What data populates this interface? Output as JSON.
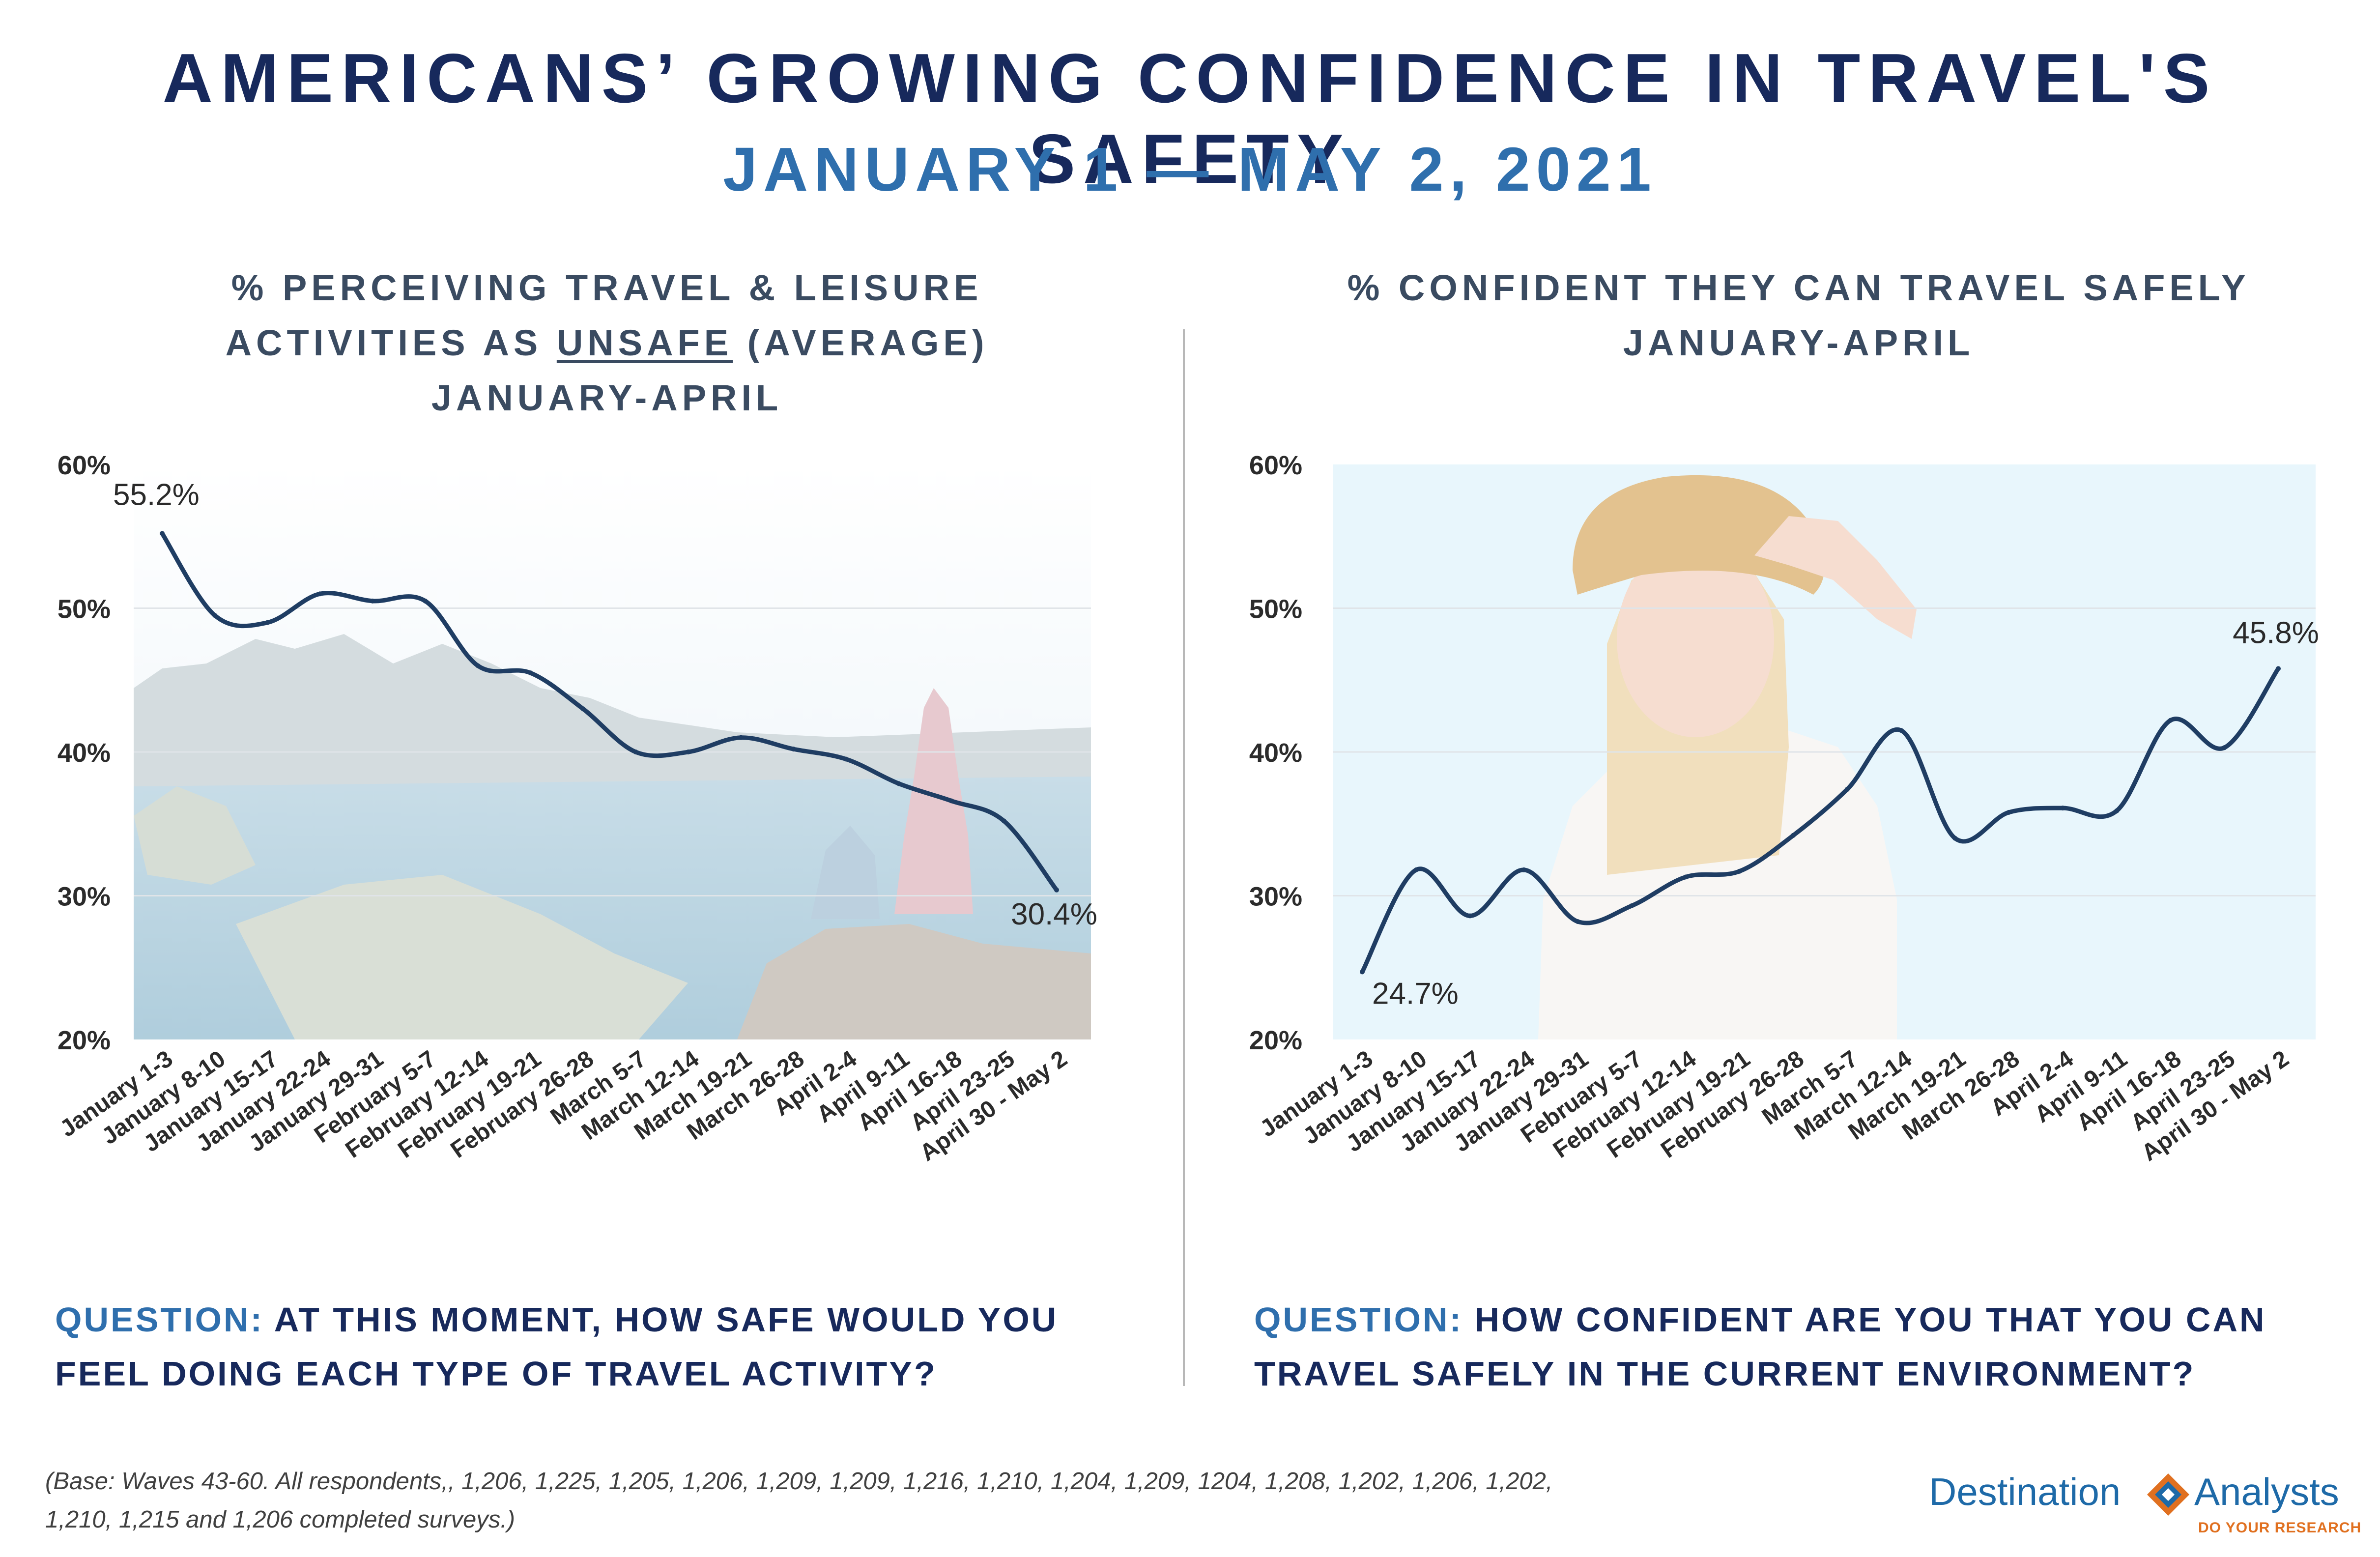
{
  "title": "AMERICANS’ GROWING CONFIDENCE IN TRAVEL'S SAFETY",
  "subtitle": "JANUARY 1 — MAY 2, 2021",
  "left_panel": {
    "title_line1": "% PERCEIVING TRAVEL & LEISURE",
    "title_line2_pre": "ACTIVITIES AS ",
    "title_line2_underlined": "UNSAFE",
    "title_line2_post": " (AVERAGE)",
    "title_line3": "JANUARY-APRIL",
    "question_label": "QUESTION:",
    "question_text": " AT THIS MOMENT, HOW SAFE WOULD YOU FEEL DOING EACH TYPE OF TRAVEL ACTIVITY?"
  },
  "right_panel": {
    "title_line1": "% CONFIDENT THEY CAN TRAVEL SAFELY",
    "title_line2": "JANUARY-APRIL",
    "question_label": "QUESTION:",
    "question_text": " HOW CONFIDENT ARE YOU THAT YOU CAN TRAVEL SAFELY IN THE CURRENT ENVIRONMENT?"
  },
  "footnote_line1": "(Base: Waves 43-60.  All respondents,, 1,206, 1,225, 1,205, 1,206, 1,209, 1,209, 1,216, 1,210, 1,204, 1,209, 1204, 1,208, 1,202, 1,206, 1,202,",
  "footnote_line2": "1,210, 1,215 and 1,206 completed surveys.)",
  "logo": {
    "word1": "Destination",
    "word2": "Analysts",
    "tagline": "DO YOUR RESEARCH"
  },
  "colors": {
    "title": "#17295c",
    "subtitle": "#2f6fad",
    "line": "#1f3d63",
    "grid": "#e0e4e8",
    "logo_blue": "#1e6aa8",
    "logo_orange": "#e07020"
  },
  "chart_data": [
    {
      "type": "line",
      "categories": [
        "January 1-3",
        "January 8-10",
        "January 15-17",
        "January 22-24",
        "January 29-31",
        "February 5-7",
        "February 12-14",
        "February 19-21",
        "February 26-28",
        "March 5-7",
        "March 12-14",
        "March 19-21",
        "March 26-28",
        "April 2-4",
        "April 9-11",
        "April 16-18",
        "April 23-25",
        "April 30 - May 2"
      ],
      "values": [
        55.2,
        49.5,
        49.0,
        51.0,
        50.5,
        50.5,
        46.0,
        45.5,
        43.0,
        40.0,
        40.0,
        41.0,
        40.2,
        39.5,
        37.8,
        36.6,
        35.2,
        30.4
      ],
      "data_labels": [
        {
          "index": 0,
          "text": "55.2%"
        },
        {
          "index": 17,
          "text": "30.4%"
        }
      ],
      "ylim": [
        20,
        60
      ],
      "yticks": [
        "20%",
        "30%",
        "40%",
        "50%",
        "60%"
      ],
      "grid": true,
      "background": "light photographic scene: person on mountain overlooking fjord"
    },
    {
      "type": "line",
      "categories": [
        "January 1-3",
        "January 8-10",
        "January 15-17",
        "January 22-24",
        "January 29-31",
        "February 5-7",
        "February 12-14",
        "February 19-21",
        "February 26-28",
        "March 5-7",
        "March 12-14",
        "March 19-21",
        "March 26-28",
        "April 2-4",
        "April 9-11",
        "April 16-18",
        "April 23-25",
        "April 30 - May 2"
      ],
      "values": [
        24.7,
        31.8,
        28.6,
        31.8,
        28.2,
        29.3,
        31.3,
        31.7,
        34.2,
        37.4,
        41.5,
        34.0,
        35.8,
        36.1,
        35.9,
        42.2,
        40.3,
        45.8
      ],
      "data_labels": [
        {
          "index": 0,
          "text": "24.7%"
        },
        {
          "index": 17,
          "text": "45.8%"
        }
      ],
      "ylim": [
        20,
        60
      ],
      "yticks": [
        "20%",
        "30%",
        "40%",
        "50%",
        "60%"
      ],
      "grid": true,
      "background": "light blue panel with photo of woman in straw hat looking into distance"
    }
  ]
}
